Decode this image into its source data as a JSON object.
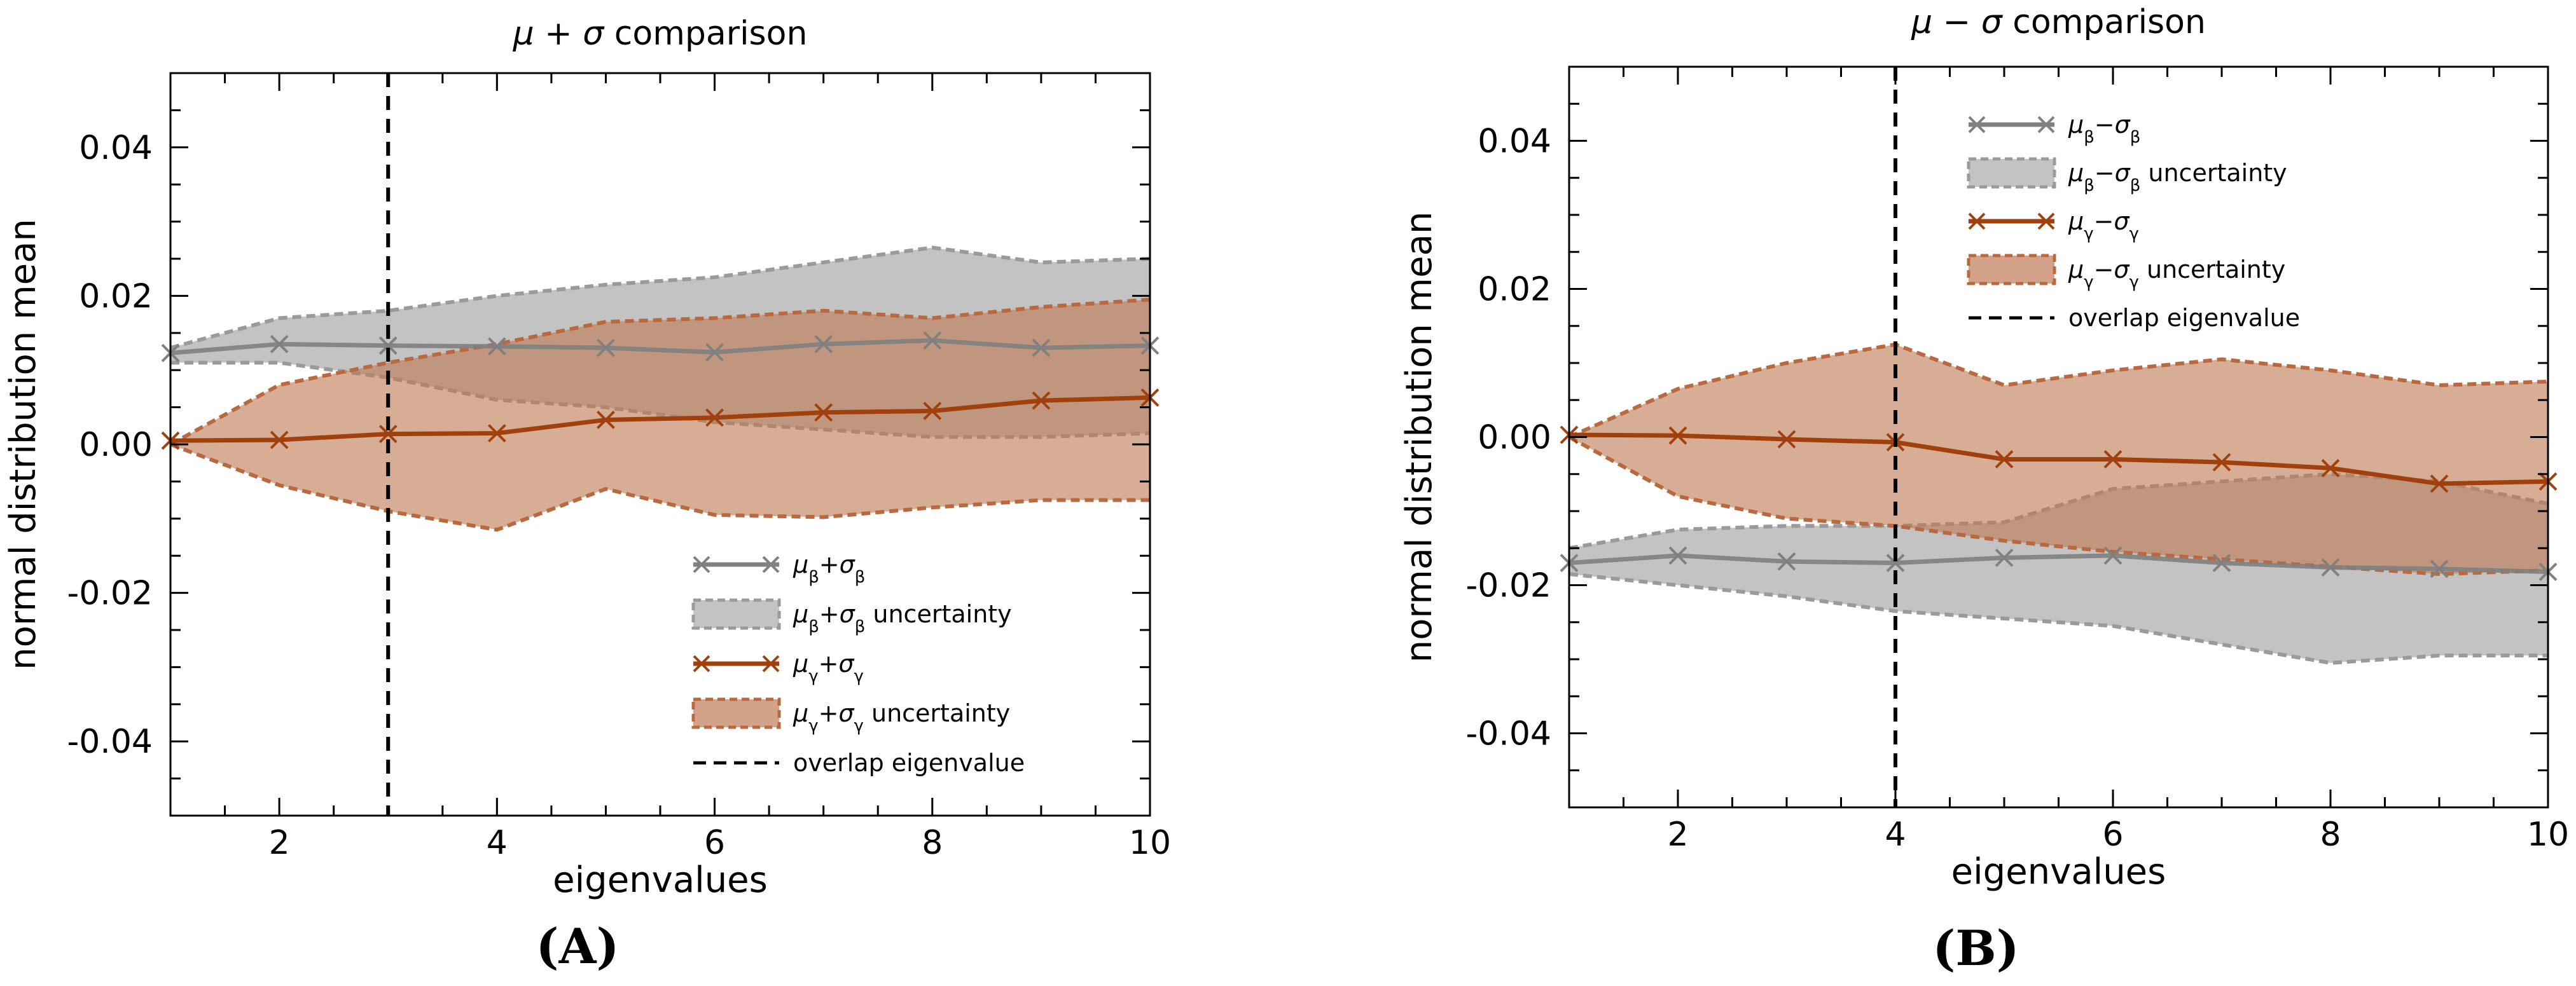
{
  "chart_data": [
    {
      "panel_label": "(A)",
      "type": "line",
      "title": "μ + σ comparison",
      "title_parts": [
        "μ",
        " + ",
        "σ",
        " comparison"
      ],
      "xlabel": "eigenvalues",
      "ylabel": "normal distribution mean",
      "xlim": [
        1,
        10
      ],
      "ylim": [
        -0.05,
        0.05
      ],
      "xticks": [
        2,
        4,
        6,
        8,
        10
      ],
      "yticks": [
        -0.04,
        -0.02,
        0.0,
        0.02,
        0.04
      ],
      "ytick_labels": [
        "-0.04",
        "-0.02",
        "0.00",
        "0.02",
        "0.04"
      ],
      "legend_position": "lower-right",
      "overlap_eigenvalue": 3,
      "x": [
        1,
        2,
        3,
        4,
        5,
        6,
        7,
        8,
        9,
        10
      ],
      "series": [
        {
          "name": "μβ+σβ",
          "legend": [
            "μ",
            "β",
            "+",
            "σ",
            "β",
            ""
          ],
          "band_legend": [
            "μ",
            "β",
            "+",
            "σ",
            "β",
            " uncertainty"
          ],
          "color": "#808080",
          "band_color": "#a9a9a9",
          "values": [
            0.0123,
            0.0135,
            0.0133,
            0.0132,
            0.013,
            0.0124,
            0.0135,
            0.014,
            0.013,
            0.0133
          ],
          "lower": [
            0.011,
            0.011,
            0.009,
            0.006,
            0.005,
            0.003,
            0.002,
            0.001,
            0.001,
            0.0015
          ],
          "upper": [
            0.013,
            0.017,
            0.018,
            0.02,
            0.0215,
            0.0225,
            0.0245,
            0.0265,
            0.0245,
            0.025
          ]
        },
        {
          "name": "μγ+σγ",
          "legend": [
            "μ",
            "γ",
            "+",
            "σ",
            "γ",
            ""
          ],
          "band_legend": [
            "μ",
            "γ",
            "+",
            "σ",
            "γ",
            " uncertainty"
          ],
          "color": "#a0410d",
          "band_color": "#c07a55",
          "values": [
            0.0005,
            0.0006,
            0.0014,
            0.0015,
            0.0033,
            0.0036,
            0.0043,
            0.0045,
            0.0059,
            0.0063
          ],
          "lower": [
            0.0,
            -0.0055,
            -0.009,
            -0.0115,
            -0.006,
            -0.0095,
            -0.0098,
            -0.0085,
            -0.0075,
            -0.0075
          ],
          "upper": [
            0.0,
            0.008,
            0.011,
            0.0135,
            0.0165,
            0.017,
            0.018,
            0.017,
            0.0185,
            0.0195
          ]
        }
      ],
      "overlap_legend": "overlap eigenvalue"
    },
    {
      "panel_label": "(B)",
      "type": "line",
      "title": "μ − σ comparison",
      "title_parts": [
        "μ",
        " − ",
        "σ",
        " comparison"
      ],
      "xlabel": "eigenvalues",
      "ylabel": "normal distribution mean",
      "xlim": [
        1,
        10
      ],
      "ylim": [
        -0.05,
        0.05
      ],
      "xticks": [
        2,
        4,
        6,
        8,
        10
      ],
      "yticks": [
        -0.04,
        -0.02,
        0.0,
        0.02,
        0.04
      ],
      "ytick_labels": [
        "-0.04",
        "-0.02",
        "0.00",
        "0.02",
        "0.04"
      ],
      "legend_position": "top-center",
      "overlap_eigenvalue": 4,
      "x": [
        1,
        2,
        3,
        4,
        5,
        6,
        7,
        8,
        9,
        10
      ],
      "series": [
        {
          "name": "μβ−σβ",
          "legend": [
            "μ",
            "β",
            "−",
            "σ",
            "β",
            ""
          ],
          "band_legend": [
            "μ",
            "β",
            "−",
            "σ",
            "β",
            " uncertainty"
          ],
          "color": "#808080",
          "band_color": "#a9a9a9",
          "values": [
            -0.017,
            -0.016,
            -0.0168,
            -0.017,
            -0.0163,
            -0.016,
            -0.017,
            -0.0176,
            -0.0178,
            -0.0182
          ],
          "lower": [
            -0.0185,
            -0.02,
            -0.0215,
            -0.0235,
            -0.0245,
            -0.0255,
            -0.028,
            -0.0305,
            -0.0295,
            -0.0295
          ],
          "upper": [
            -0.015,
            -0.0125,
            -0.012,
            -0.012,
            -0.0115,
            -0.007,
            -0.006,
            -0.005,
            -0.006,
            -0.009
          ]
        },
        {
          "name": "μγ−σγ",
          "legend": [
            "μ",
            "γ",
            "−",
            "σ",
            "γ",
            ""
          ],
          "band_legend": [
            "μ",
            "γ",
            "−",
            "σ",
            "γ",
            " uncertainty"
          ],
          "color": "#a0410d",
          "band_color": "#c07a55",
          "values": [
            0.0003,
            0.0002,
            -0.0003,
            -0.0007,
            -0.003,
            -0.003,
            -0.0034,
            -0.0042,
            -0.0063,
            -0.006
          ],
          "lower": [
            0.0,
            -0.008,
            -0.011,
            -0.012,
            -0.014,
            -0.0155,
            -0.0165,
            -0.0175,
            -0.0185,
            -0.018
          ],
          "upper": [
            0.0,
            0.0065,
            0.01,
            0.0125,
            0.007,
            0.009,
            0.0105,
            0.009,
            0.007,
            0.0075
          ]
        }
      ],
      "overlap_legend": "overlap eigenvalue"
    }
  ]
}
